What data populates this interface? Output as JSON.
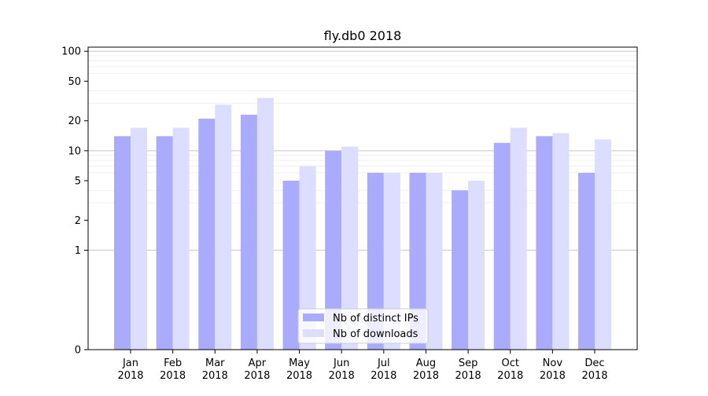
{
  "chart_data": {
    "type": "bar",
    "title": "fly.db0 2018",
    "xlabel": "",
    "ylabel": "",
    "y_scale": "symlog",
    "ylim": [
      0,
      110
    ],
    "y_ticks": [
      0,
      1,
      2,
      5,
      10,
      20,
      50,
      100
    ],
    "grid": true,
    "legend_position": "lower-center",
    "categories": [
      [
        "Jan",
        "2018"
      ],
      [
        "Feb",
        "2018"
      ],
      [
        "Mar",
        "2018"
      ],
      [
        "Apr",
        "2018"
      ],
      [
        "May",
        "2018"
      ],
      [
        "Jun",
        "2018"
      ],
      [
        "Jul",
        "2018"
      ],
      [
        "Aug",
        "2018"
      ],
      [
        "Sep",
        "2018"
      ],
      [
        "Oct",
        "2018"
      ],
      [
        "Nov",
        "2018"
      ],
      [
        "Dec",
        "2018"
      ]
    ],
    "series": [
      {
        "name": "Nb of distinct IPs",
        "color": "#aaaaff",
        "values": [
          14,
          14,
          21,
          23,
          5,
          10,
          6,
          6,
          4,
          12,
          14,
          6
        ]
      },
      {
        "name": "Nb of downloads",
        "color": "#ddddff",
        "values": [
          17,
          17,
          29,
          34,
          7,
          11,
          6,
          6,
          5,
          17,
          15,
          13
        ]
      }
    ]
  }
}
